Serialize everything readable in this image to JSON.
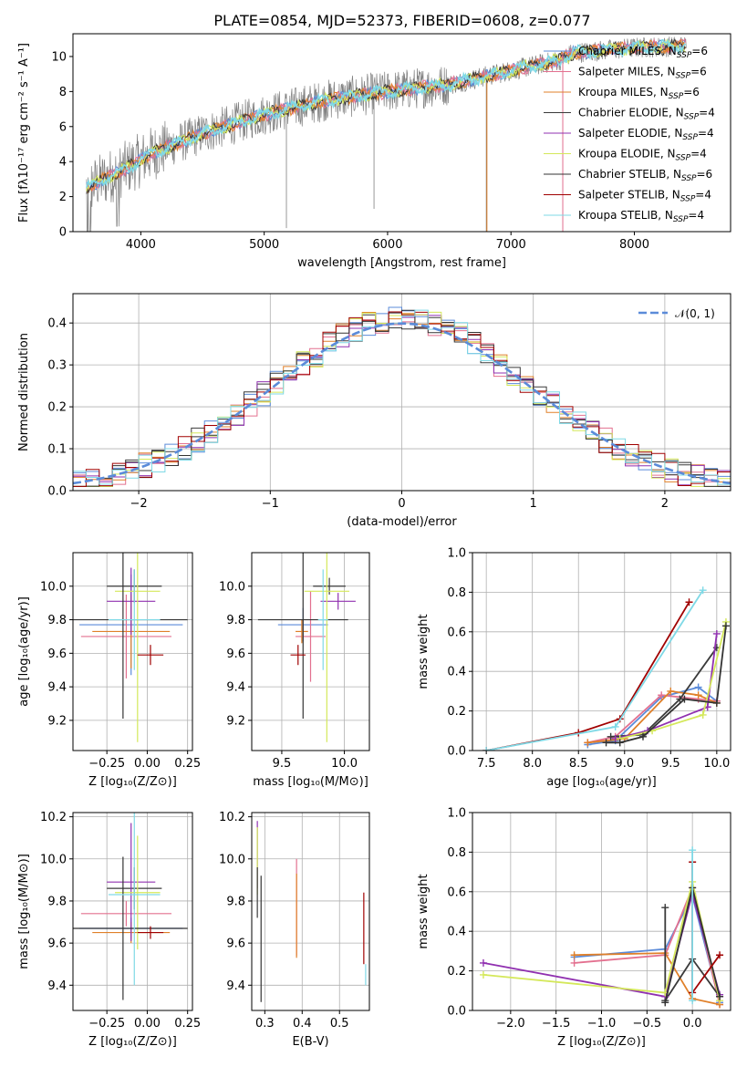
{
  "figure": {
    "title": "PLATE=0854, MJD=52373, FIBERID=0608, z=0.077"
  },
  "colors": {
    "chabrier_miles": "#5b8bd9",
    "salpeter_miles": "#e3708f",
    "kroupa_miles": "#e0802a",
    "chabrier_elodie": "#3a3a3a",
    "salpeter_elodie": "#9030b0",
    "kroupa_elodie": "#d4e85a",
    "chabrier_stelib": "#333333",
    "salpeter_stelib": "#a00000",
    "kroupa_stelib": "#7fd9e6"
  },
  "legend": [
    {
      "key": "chabrier_miles",
      "label": "Chabrier MILES, N",
      "sub": "SSP",
      "tail": "=6"
    },
    {
      "key": "salpeter_miles",
      "label": "Salpeter MILES, N",
      "sub": "SSP",
      "tail": "=6"
    },
    {
      "key": "kroupa_miles",
      "label": "Kroupa MILES, N",
      "sub": "SSP",
      "tail": "=6"
    },
    {
      "key": "chabrier_elodie",
      "label": "Chabrier ELODIE, N",
      "sub": "SSP",
      "tail": "=4"
    },
    {
      "key": "salpeter_elodie",
      "label": "Salpeter ELODIE, N",
      "sub": "SSP",
      "tail": "=4"
    },
    {
      "key": "kroupa_elodie",
      "label": "Kroupa ELODIE, N",
      "sub": "SSP",
      "tail": "=4"
    },
    {
      "key": "chabrier_stelib",
      "label": "Chabrier STELIB, N",
      "sub": "SSP",
      "tail": "=6"
    },
    {
      "key": "salpeter_stelib",
      "label": "Salpeter STELIB, N",
      "sub": "SSP",
      "tail": "=4"
    },
    {
      "key": "kroupa_stelib",
      "label": "Kroupa STELIB, N",
      "sub": "SSP",
      "tail": "=4"
    }
  ],
  "chart_data": [
    {
      "id": "spectrum",
      "type": "line",
      "xlabel": "wavelength [Angstrom, rest frame]",
      "ylabel": "Flux [fλ10⁻¹⁷ erg cm⁻² s⁻¹ A⁻¹]",
      "xlim": [
        3450,
        8780
      ],
      "ylim": [
        0,
        11.3
      ],
      "xticks": [
        "4000",
        "5000",
        "6000",
        "7000",
        "8000"
      ],
      "yticks": [
        "0",
        "2",
        "4",
        "6",
        "8",
        "10"
      ],
      "data_envelope": {
        "x": [
          3560,
          3900,
          4100,
          4500,
          5000,
          5500,
          6000,
          6500,
          7000,
          7400,
          7500,
          8000,
          8400
        ],
        "y": [
          2.5,
          3.7,
          4.5,
          5.6,
          6.7,
          7.5,
          8.0,
          8.4,
          9.2,
          9.8,
          10.2,
          10.5,
          10.6
        ]
      }
    },
    {
      "id": "residuals",
      "type": "step",
      "xlabel": "(data-model)/error",
      "ylabel": "Normed distribution",
      "xlim": [
        -2.5,
        2.5
      ],
      "ylim": [
        0,
        0.47
      ],
      "xticks": [
        "−2",
        "−1",
        "0",
        "1",
        "2"
      ],
      "yticks": [
        "0.0",
        "0.1",
        "0.2",
        "0.3",
        "0.4"
      ],
      "legend": "𝒩(0, 1)"
    },
    {
      "id": "z_age",
      "type": "errorbar",
      "xlabel": "Z [log₁₀(Z/Z⊙)]",
      "ylabel": "age  [log₁₀(age/yr)]",
      "xlim": [
        -0.46,
        0.28
      ],
      "ylim": [
        9.02,
        10.2
      ],
      "xticks": [
        "−0.25",
        "0.00",
        "0.25"
      ],
      "yticks": [
        "9.2",
        "9.4",
        "9.6",
        "9.8",
        "10.0"
      ],
      "points": [
        {
          "key": "chabrier_miles",
          "x": -0.1,
          "y": 9.77,
          "xe": 0.32,
          "ye": 0.3
        },
        {
          "key": "salpeter_miles",
          "x": -0.13,
          "y": 9.7,
          "xe": 0.28,
          "ye": 0.25
        },
        {
          "key": "kroupa_miles",
          "x": -0.1,
          "y": 9.73,
          "xe": 0.24,
          "ye": 0.22
        },
        {
          "key": "chabrier_elodie",
          "x": -0.08,
          "y": 10.0,
          "xe": 0.17,
          "ye": 0.1
        },
        {
          "key": "salpeter_elodie",
          "x": -0.1,
          "y": 9.91,
          "xe": 0.15,
          "ye": 0.2
        },
        {
          "key": "kroupa_elodie",
          "x": -0.06,
          "y": 9.97,
          "xe": 0.14,
          "ye": 0.9
        },
        {
          "key": "chabrier_stelib",
          "x": -0.15,
          "y": 9.8,
          "xe": 0.4,
          "ye": 0.59
        },
        {
          "key": "salpeter_stelib",
          "x": 0.02,
          "y": 9.59,
          "xe": 0.08,
          "ye": 0.06
        },
        {
          "key": "kroupa_stelib",
          "x": -0.08,
          "y": 9.8,
          "xe": 0.16,
          "ye": 0.3
        }
      ]
    },
    {
      "id": "mass_age",
      "type": "errorbar",
      "xlabel": "mass [log₁₀(M/M⊙)]",
      "ylabel": "",
      "xlim": [
        9.26,
        10.2
      ],
      "ylim": [
        9.02,
        10.2
      ],
      "xticks": [
        "9.5",
        "10.0"
      ],
      "yticks": [
        "9.2",
        "9.4",
        "9.6",
        "9.8",
        "10.0"
      ],
      "points": [
        {
          "key": "chabrier_miles",
          "x": 9.67,
          "y": 9.77,
          "xe": 0.2,
          "ye": 0.1
        },
        {
          "key": "salpeter_miles",
          "x": 9.73,
          "y": 9.7,
          "xe": 0.12,
          "ye": 0.27
        },
        {
          "key": "kroupa_miles",
          "x": 9.66,
          "y": 9.73,
          "xe": 0.05,
          "ye": 0.07
        },
        {
          "key": "chabrier_elodie",
          "x": 9.88,
          "y": 10.0,
          "xe": 0.13,
          "ye": 0.05
        },
        {
          "key": "salpeter_elodie",
          "x": 9.95,
          "y": 9.91,
          "xe": 0.14,
          "ye": 0.05
        },
        {
          "key": "kroupa_elodie",
          "x": 9.86,
          "y": 9.97,
          "xe": 0.18,
          "ye": 0.9
        },
        {
          "key": "chabrier_stelib",
          "x": 9.67,
          "y": 9.8,
          "xe": 0.36,
          "ye": 0.59
        },
        {
          "key": "salpeter_stelib",
          "x": 9.63,
          "y": 9.59,
          "xe": 0.06,
          "ye": 0.06
        },
        {
          "key": "kroupa_stelib",
          "x": 9.83,
          "y": 9.8,
          "xe": 0.04,
          "ye": 0.3
        }
      ]
    },
    {
      "id": "age_weight",
      "type": "line",
      "xlabel": "age  [log₁₀(age/yr)]",
      "ylabel": "mass weight",
      "xlim": [
        7.35,
        10.15
      ],
      "ylim": [
        0,
        1.0
      ],
      "xticks": [
        "7.5",
        "8.0",
        "8.5",
        "9.0",
        "9.5",
        "10.0"
      ],
      "yticks": [
        "0.0",
        "0.2",
        "0.4",
        "0.6",
        "0.8",
        "1.0"
      ],
      "series": [
        {
          "key": "chabrier_miles",
          "x": [
            8.6,
            8.9,
            9.4,
            9.8,
            10.0
          ],
          "y": [
            0.03,
            0.05,
            0.27,
            0.32,
            0.25
          ]
        },
        {
          "key": "salpeter_miles",
          "x": [
            8.6,
            8.9,
            9.4,
            9.8,
            10.0
          ],
          "y": [
            0.04,
            0.07,
            0.28,
            0.26,
            0.25
          ]
        },
        {
          "key": "kroupa_miles",
          "x": [
            8.6,
            9.0,
            9.5,
            9.8,
            10.0
          ],
          "y": [
            0.04,
            0.06,
            0.3,
            0.28,
            0.24
          ]
        },
        {
          "key": "chabrier_elodie",
          "x": [
            8.85,
            9.2,
            9.6,
            10.0
          ],
          "y": [
            0.07,
            0.08,
            0.26,
            0.52
          ]
        },
        {
          "key": "salpeter_elodie",
          "x": [
            8.9,
            9.25,
            9.9,
            10.0
          ],
          "y": [
            0.06,
            0.1,
            0.22,
            0.59
          ]
        },
        {
          "key": "kroupa_elodie",
          "x": [
            8.95,
            9.3,
            9.85,
            10.1
          ],
          "y": [
            0.06,
            0.1,
            0.18,
            0.65
          ]
        },
        {
          "key": "chabrier_stelib",
          "x": [
            8.8,
            8.95,
            9.2,
            9.65,
            10.0,
            10.1
          ],
          "y": [
            0.04,
            0.04,
            0.07,
            0.26,
            0.24,
            0.63
          ]
        },
        {
          "key": "salpeter_stelib",
          "x": [
            7.5,
            8.5,
            8.95,
            9.7
          ],
          "y": [
            0.0,
            0.09,
            0.16,
            0.75
          ]
        },
        {
          "key": "kroupa_stelib",
          "x": [
            7.5,
            8.9,
            9.85
          ],
          "y": [
            0.0,
            0.12,
            0.81
          ]
        }
      ]
    },
    {
      "id": "z_mass",
      "type": "errorbar",
      "xlabel": "Z [log₁₀(Z/Z⊙)]",
      "ylabel": "mass [log₁₀(M/M⊙)]",
      "xlim": [
        -0.46,
        0.28
      ],
      "ylim": [
        9.28,
        10.22
      ],
      "xticks": [
        "−0.25",
        "0.00",
        "0.25"
      ],
      "yticks": [
        "9.4",
        "9.6",
        "9.8",
        "10.0",
        "10.2"
      ],
      "points": [
        {
          "key": "chabrier_miles",
          "x": -0.1,
          "y": 9.67,
          "xe": 0.32,
          "ye": 0.05
        },
        {
          "key": "salpeter_miles",
          "x": -0.13,
          "y": 9.74,
          "xe": 0.28,
          "ye": 0.06
        },
        {
          "key": "kroupa_miles",
          "x": -0.1,
          "y": 9.65,
          "xe": 0.24,
          "ye": 0.05
        },
        {
          "key": "chabrier_elodie",
          "x": -0.08,
          "y": 9.86,
          "xe": 0.17,
          "ye": 0.1
        },
        {
          "key": "salpeter_elodie",
          "x": -0.1,
          "y": 9.89,
          "xe": 0.15,
          "ye": 0.28
        },
        {
          "key": "kroupa_elodie",
          "x": -0.06,
          "y": 9.84,
          "xe": 0.14,
          "ye": 0.27
        },
        {
          "key": "chabrier_stelib",
          "x": -0.15,
          "y": 9.67,
          "xe": 0.4,
          "ye": 0.34
        },
        {
          "key": "salpeter_stelib",
          "x": 0.02,
          "y": 9.65,
          "xe": 0.08,
          "ye": 0.03
        },
        {
          "key": "kroupa_stelib",
          "x": -0.08,
          "y": 9.83,
          "xe": 0.16,
          "ye": 0.43
        }
      ]
    },
    {
      "id": "ebv_mass",
      "type": "errorbar",
      "xlabel": "E(B-V)",
      "ylabel": "",
      "xlim": [
        0.265,
        0.58
      ],
      "ylim": [
        9.28,
        10.22
      ],
      "xticks": [
        "0.3",
        "0.4",
        "0.5"
      ],
      "yticks": [
        "9.4",
        "9.6",
        "9.8",
        "10.0",
        "10.2"
      ],
      "points": [
        {
          "key": "salpeter_elodie",
          "x": 0.28,
          "y": 10.02,
          "xe": 0,
          "ye": 0.16
        },
        {
          "key": "kroupa_elodie",
          "x": 0.28,
          "y": 9.99,
          "xe": 0,
          "ye": 0.16
        },
        {
          "key": "chabrier_elodie",
          "x": 0.28,
          "y": 9.84,
          "xe": 0,
          "ye": 0.12
        },
        {
          "key": "chabrier_stelib",
          "x": 0.29,
          "y": 9.62,
          "xe": 0,
          "ye": 0.3
        },
        {
          "key": "salpeter_miles",
          "x": 0.385,
          "y": 9.77,
          "xe": 0,
          "ye": 0.23
        },
        {
          "key": "kroupa_miles",
          "x": 0.385,
          "y": 9.73,
          "xe": 0,
          "ye": 0.2
        },
        {
          "key": "salpeter_stelib",
          "x": 0.565,
          "y": 9.67,
          "xe": 0,
          "ye": 0.17
        },
        {
          "key": "kroupa_stelib",
          "x": 0.57,
          "y": 9.45,
          "xe": 0,
          "ye": 0.05
        }
      ]
    },
    {
      "id": "z_weight",
      "type": "line",
      "xlabel": "Z [log₁₀(Z/Z⊙)]",
      "ylabel": "mass weight",
      "xlim": [
        -2.42,
        0.42
      ],
      "ylim": [
        0,
        1.0
      ],
      "xticks": [
        "−2.0",
        "−1.5",
        "−1.0",
        "−0.5",
        "0.0"
      ],
      "yticks": [
        "0.0",
        "0.2",
        "0.4",
        "0.6",
        "0.8",
        "1.0"
      ],
      "series": [
        {
          "key": "chabrier_miles",
          "x": [
            -1.3,
            -0.3,
            0.0,
            0.3
          ],
          "y": [
            0.27,
            0.31,
            0.58,
            0.04
          ]
        },
        {
          "key": "salpeter_miles",
          "x": [
            -1.3,
            -0.3,
            0.0,
            0.3
          ],
          "y": [
            0.24,
            0.28,
            0.62,
            0.03
          ]
        },
        {
          "key": "kroupa_miles",
          "x": [
            -1.3,
            -0.3,
            0.0,
            0.3
          ],
          "y": [
            0.28,
            0.29,
            0.06,
            0.03
          ]
        },
        {
          "key": "chabrier_elodie",
          "x": [
            -0.3,
            -0.3,
            0.0,
            0.3
          ],
          "y": [
            0.52,
            0.05,
            0.26,
            0.07
          ]
        },
        {
          "key": "salpeter_elodie",
          "x": [
            -2.3,
            -0.3,
            0.0,
            0.3
          ],
          "y": [
            0.24,
            0.07,
            0.59,
            0.08
          ]
        },
        {
          "key": "kroupa_elodie",
          "x": [
            -2.3,
            -0.3,
            0.0,
            0.3
          ],
          "y": [
            0.18,
            0.09,
            0.65,
            0.05
          ]
        },
        {
          "key": "chabrier_stelib",
          "x": [
            -0.3,
            0.0,
            0.3
          ],
          "y": [
            0.04,
            0.62,
            0.07
          ]
        },
        {
          "key": "salpeter_stelib",
          "x": [
            0.0,
            0.0,
            0.3
          ],
          "y": [
            0.75,
            0.09,
            0.28
          ]
        },
        {
          "key": "kroupa_stelib",
          "x": [
            0.0,
            0.0
          ],
          "y": [
            0.81,
            0.05
          ]
        }
      ]
    }
  ]
}
